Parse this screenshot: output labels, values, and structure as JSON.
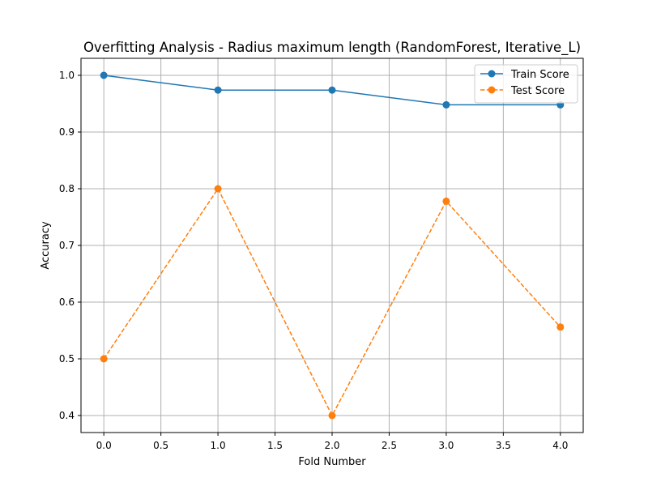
{
  "chart_data": {
    "type": "line",
    "title": "Overfitting Analysis - Radius maximum length (RandomForest, Iterative_L)",
    "xlabel": "Fold Number",
    "ylabel": "Accuracy",
    "x": [
      0,
      1,
      2,
      3,
      4
    ],
    "xlim": [
      -0.2,
      4.2
    ],
    "ylim": [
      0.37,
      1.03
    ],
    "xticks": [
      0.0,
      0.5,
      1.0,
      1.5,
      2.0,
      2.5,
      3.0,
      3.5,
      4.0
    ],
    "xtick_labels": [
      "0.0",
      "0.5",
      "1.0",
      "1.5",
      "2.0",
      "2.5",
      "3.0",
      "3.5",
      "4.0"
    ],
    "yticks": [
      0.4,
      0.5,
      0.6,
      0.7,
      0.8,
      0.9,
      1.0
    ],
    "ytick_labels": [
      "0.4",
      "0.5",
      "0.6",
      "0.7",
      "0.8",
      "0.9",
      "1.0"
    ],
    "grid": true,
    "legend_position": "top-right",
    "series": [
      {
        "name": "Train Score",
        "values": [
          1.0,
          0.974,
          0.974,
          0.948,
          0.948
        ],
        "color": "#1f77b4",
        "line_style": "solid",
        "marker": "circle"
      },
      {
        "name": "Test Score",
        "values": [
          0.5,
          0.8,
          0.4,
          0.778,
          0.556
        ],
        "color": "#ff7f0e",
        "line_style": "dashed",
        "marker": "circle"
      }
    ]
  }
}
